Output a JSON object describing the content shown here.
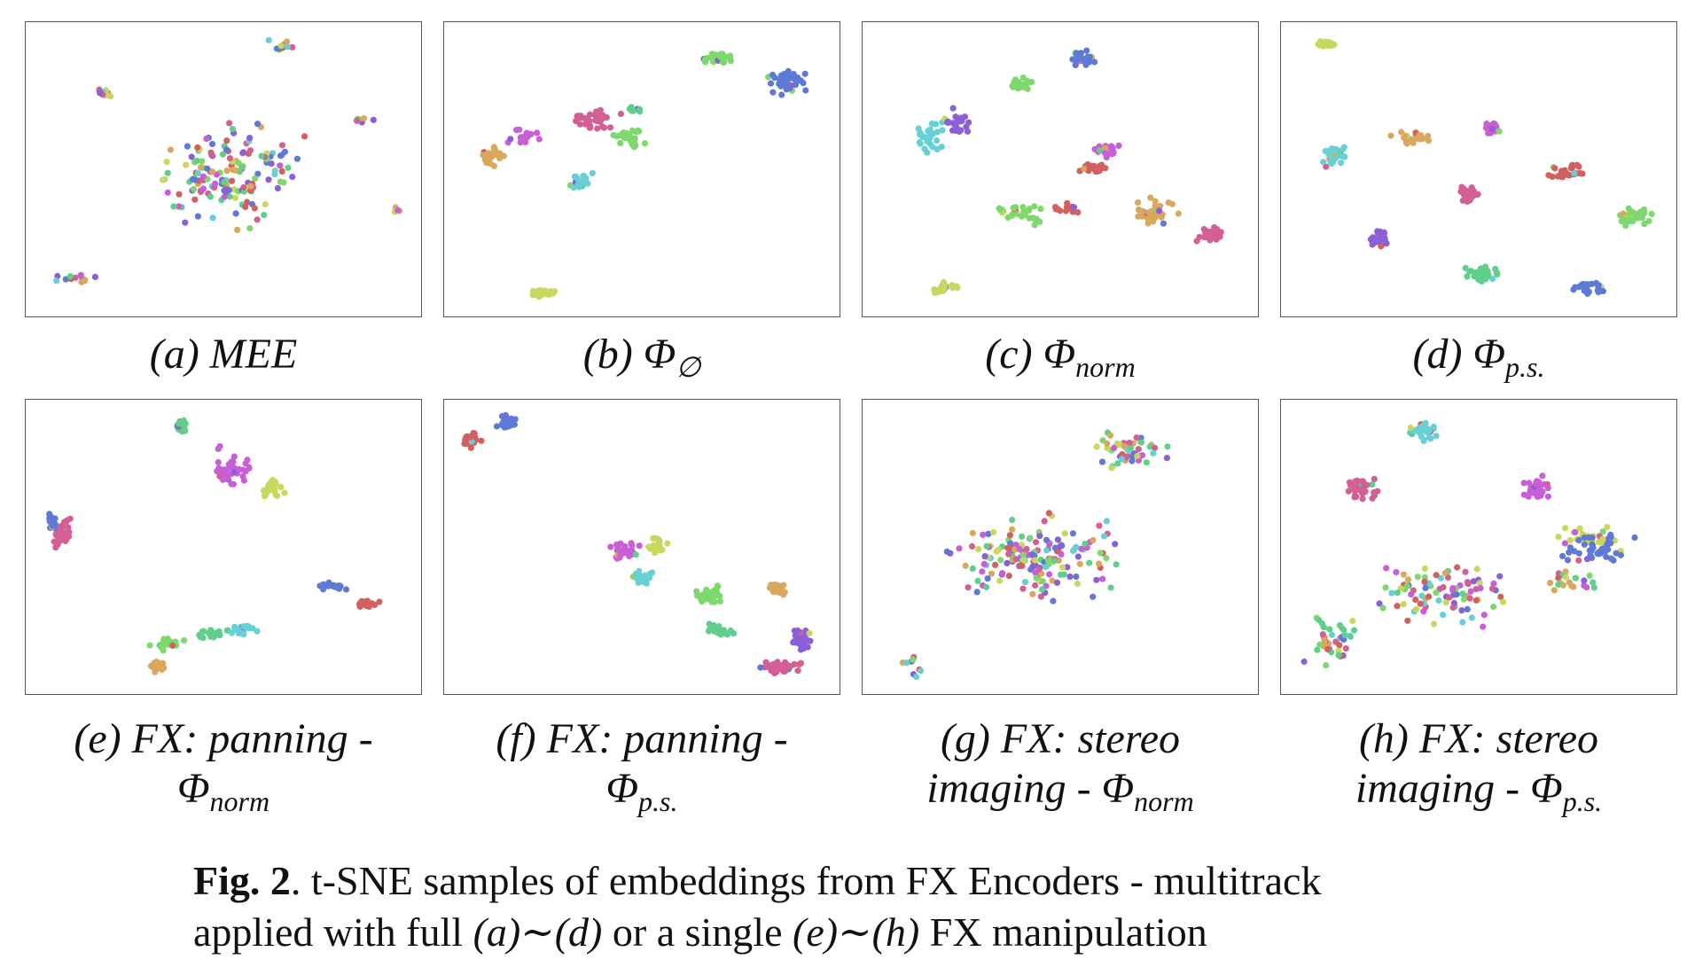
{
  "panels": [
    {
      "letter": "(a)",
      "label": "MEE",
      "sub": "",
      "line2": "",
      "line2_sub": ""
    },
    {
      "letter": "(b)",
      "label": "Φ",
      "sub": "∅",
      "line2": "",
      "line2_sub": ""
    },
    {
      "letter": "(c)",
      "label": "Φ",
      "sub": "norm",
      "line2": "",
      "line2_sub": ""
    },
    {
      "letter": "(d)",
      "label": "Φ",
      "sub": "p.s.",
      "line2": "",
      "line2_sub": ""
    },
    {
      "letter": "(e)",
      "label": "FX: panning -",
      "sub": "",
      "line2": "Φ",
      "line2_sub": "norm"
    },
    {
      "letter": "(f)",
      "label": "FX: panning -",
      "sub": "",
      "line2": "Φ",
      "line2_sub": "p.s."
    },
    {
      "letter": "(g)",
      "label": "FX: stereo",
      "sub": "",
      "line2": "imaging - Φ",
      "line2_sub": "norm"
    },
    {
      "letter": "(h)",
      "label": "FX: stereo",
      "sub": "",
      "line2": "imaging - Φ",
      "line2_sub": "p.s."
    }
  ],
  "caption": {
    "fig_label": "Fig. 2",
    "text1": ". t-SNE samples of embeddings from FX Encoders - multitrack",
    "text2a": "applied with full ",
    "range1": "(a)∼(d)",
    "text2b": " or a single ",
    "range2": "(e)∼(h)",
    "text2c": " FX manipulation"
  },
  "colors": [
    "#d2605e",
    "#d9a85c",
    "#c8d85e",
    "#7ed86e",
    "#60cf8c",
    "#66d0d6",
    "#5f79d6",
    "#8a5fd8",
    "#c95fd6",
    "#d45f95"
  ]
}
